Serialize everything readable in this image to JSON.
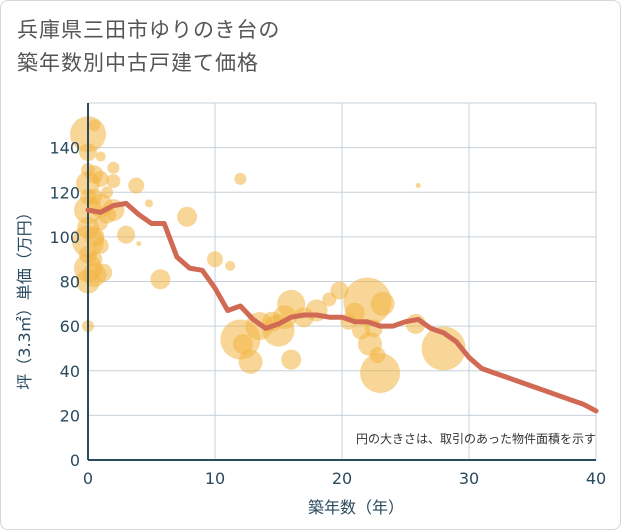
{
  "title_lines": [
    "兵庫県三田市ゆりのき台の",
    "築年数別中古戸建て価格"
  ],
  "chart_data": {
    "type": "scatter",
    "title": "兵庫県三田市ゆりのき台の築年数別中古戸建て価格",
    "xlabel": "築年数（年）",
    "ylabel": "坪（3.3㎡）単価（万円）",
    "xlim": [
      0,
      40
    ],
    "ylim": [
      0,
      160
    ],
    "x_ticks": [
      0,
      10,
      20,
      30,
      40
    ],
    "y_ticks": [
      0,
      20,
      40,
      60,
      80,
      100,
      120,
      140
    ],
    "grid": true,
    "note": "円の大きさは、取引のあった物件面積を示す",
    "colors": {
      "bubble": "#f2b441",
      "line": "#d16a55",
      "grid": "#c7d0d8",
      "axis": "#2a4a5e"
    },
    "bubbles": [
      {
        "x": 0,
        "y": 146,
        "size": 18
      },
      {
        "x": 0,
        "y": 138,
        "size": 9
      },
      {
        "x": 0,
        "y": 130,
        "size": 7
      },
      {
        "x": 0,
        "y": 124,
        "size": 12
      },
      {
        "x": 0,
        "y": 118,
        "size": 8
      },
      {
        "x": 0,
        "y": 112,
        "size": 14
      },
      {
        "x": 0,
        "y": 104,
        "size": 11
      },
      {
        "x": 0,
        "y": 98,
        "size": 16
      },
      {
        "x": 0,
        "y": 92,
        "size": 9
      },
      {
        "x": 0,
        "y": 86,
        "size": 14
      },
      {
        "x": 0,
        "y": 80,
        "size": 12
      },
      {
        "x": 0,
        "y": 60,
        "size": 6
      },
      {
        "x": 0.5,
        "y": 150,
        "size": 6
      },
      {
        "x": 0.5,
        "y": 128,
        "size": 9
      },
      {
        "x": 0.5,
        "y": 118,
        "size": 8
      },
      {
        "x": 0.5,
        "y": 100,
        "size": 10
      },
      {
        "x": 0.5,
        "y": 90,
        "size": 8
      },
      {
        "x": 0.5,
        "y": 83,
        "size": 12
      },
      {
        "x": 1,
        "y": 136,
        "size": 5
      },
      {
        "x": 1,
        "y": 126,
        "size": 8
      },
      {
        "x": 1,
        "y": 114,
        "size": 12
      },
      {
        "x": 1,
        "y": 106,
        "size": 7
      },
      {
        "x": 1,
        "y": 96,
        "size": 8
      },
      {
        "x": 1.2,
        "y": 84,
        "size": 9
      },
      {
        "x": 1.5,
        "y": 120,
        "size": 6
      },
      {
        "x": 1.5,
        "y": 110,
        "size": 9
      },
      {
        "x": 2,
        "y": 131,
        "size": 6
      },
      {
        "x": 2,
        "y": 125,
        "size": 7
      },
      {
        "x": 2,
        "y": 112,
        "size": 11
      },
      {
        "x": 3,
        "y": 101,
        "size": 9
      },
      {
        "x": 3.8,
        "y": 123,
        "size": 8
      },
      {
        "x": 4,
        "y": 97,
        "size": 2.5
      },
      {
        "x": 4.8,
        "y": 115,
        "size": 4
      },
      {
        "x": 5.7,
        "y": 81,
        "size": 10
      },
      {
        "x": 7.8,
        "y": 109,
        "size": 10
      },
      {
        "x": 10,
        "y": 90,
        "size": 8
      },
      {
        "x": 11.2,
        "y": 87,
        "size": 5
      },
      {
        "x": 12,
        "y": 126,
        "size": 6
      },
      {
        "x": 12,
        "y": 54,
        "size": 20
      },
      {
        "x": 12.2,
        "y": 52,
        "size": 10
      },
      {
        "x": 12.8,
        "y": 44,
        "size": 12
      },
      {
        "x": 13.5,
        "y": 60,
        "size": 14
      },
      {
        "x": 14.5,
        "y": 62,
        "size": 10
      },
      {
        "x": 15,
        "y": 58,
        "size": 16
      },
      {
        "x": 15.5,
        "y": 64,
        "size": 12
      },
      {
        "x": 16,
        "y": 70,
        "size": 14
      },
      {
        "x": 16,
        "y": 45,
        "size": 10
      },
      {
        "x": 17,
        "y": 64,
        "size": 10
      },
      {
        "x": 18,
        "y": 67,
        "size": 11
      },
      {
        "x": 19,
        "y": 72,
        "size": 7
      },
      {
        "x": 19.8,
        "y": 76,
        "size": 9
      },
      {
        "x": 20.5,
        "y": 62,
        "size": 8
      },
      {
        "x": 21,
        "y": 66,
        "size": 10
      },
      {
        "x": 21.5,
        "y": 58,
        "size": 9
      },
      {
        "x": 22,
        "y": 71,
        "size": 24
      },
      {
        "x": 22.2,
        "y": 52,
        "size": 12
      },
      {
        "x": 22.5,
        "y": 59,
        "size": 9
      },
      {
        "x": 22.8,
        "y": 47,
        "size": 8
      },
      {
        "x": 23,
        "y": 39,
        "size": 20
      },
      {
        "x": 23.2,
        "y": 70,
        "size": 12
      },
      {
        "x": 25.8,
        "y": 61,
        "size": 10
      },
      {
        "x": 26,
        "y": 123,
        "size": 2.5
      },
      {
        "x": 28,
        "y": 50,
        "size": 22
      }
    ],
    "line": {
      "x": [
        0,
        1,
        2,
        3,
        4,
        5,
        6,
        7,
        8,
        9,
        10,
        11,
        12,
        13,
        14,
        15,
        16,
        17,
        18,
        19,
        20,
        21,
        22,
        23,
        24,
        25,
        26,
        27,
        28,
        29,
        30,
        31,
        32,
        33,
        34,
        35,
        36,
        37,
        38,
        39,
        40
      ],
      "y": [
        112,
        111,
        114,
        115,
        110,
        106,
        106,
        91,
        86,
        85,
        77,
        67,
        69,
        63,
        59,
        61,
        64,
        65,
        65,
        64,
        64,
        62,
        62,
        60,
        60,
        62,
        63,
        59,
        57,
        53,
        46,
        41,
        39,
        37,
        35,
        33,
        31,
        29,
        27,
        25,
        22
      ]
    }
  }
}
